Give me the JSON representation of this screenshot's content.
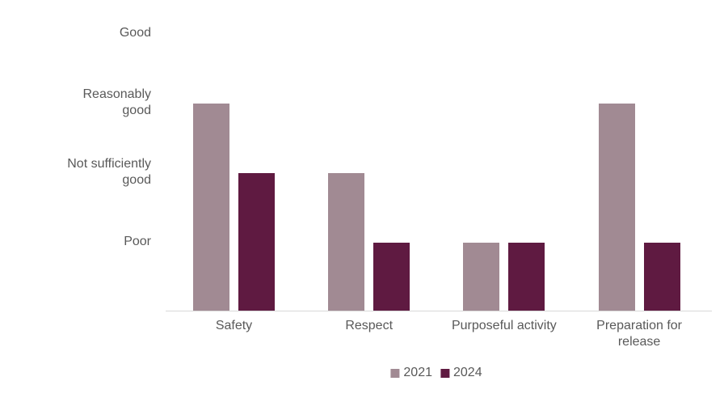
{
  "chart_data": {
    "type": "bar",
    "title": "",
    "xlabel": "",
    "ylabel": "",
    "grid": false,
    "legend_position": "bottom",
    "categories": [
      "Safety",
      "Respect",
      "Purposeful activity",
      "Preparation for release"
    ],
    "series": [
      {
        "name": "2021",
        "color": "#a18a93",
        "values": [
          3,
          2,
          1,
          3
        ],
        "value_labels": [
          "Reasonably good",
          "Not sufficiently good",
          "Poor",
          "Reasonably good"
        ]
      },
      {
        "name": "2024",
        "color": "#5f1a41",
        "values": [
          2,
          1,
          1,
          1
        ],
        "value_labels": [
          "Not sufficiently good",
          "Poor",
          "Poor",
          "Poor"
        ]
      }
    ],
    "y_ticks": [
      {
        "value": 4,
        "label": "Good"
      },
      {
        "value": 3,
        "label": "Reasonably good"
      },
      {
        "value": 2,
        "label": "Not sufficiently good"
      },
      {
        "value": 1,
        "label": "Poor"
      }
    ],
    "ylim": [
      0,
      4.5
    ]
  },
  "colors": {
    "background": "#ffffff",
    "text": "#595959",
    "axis_line": "#d9d9d9",
    "series_2021": "#a18a93",
    "series_2024": "#5f1a41"
  }
}
